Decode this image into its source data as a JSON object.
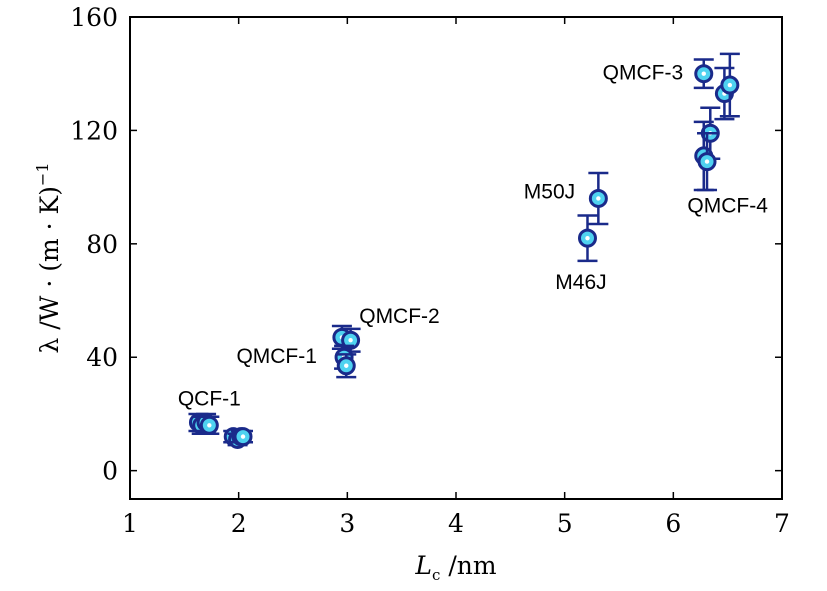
{
  "chart_data": {
    "type": "scatter",
    "title": "",
    "xlabel": {
      "main": "L",
      "sub": "c",
      "unit": " /nm"
    },
    "ylabel": {
      "prefix": "λ /W · (m · K)",
      "sup": "−1"
    },
    "xlim": [
      1,
      7
    ],
    "ylim": [
      -10,
      160
    ],
    "xticks": [
      1,
      2,
      3,
      4,
      5,
      6,
      7
    ],
    "yticks": [
      0,
      40,
      80,
      120,
      160
    ],
    "grid": false,
    "colors": {
      "marker_edge": "#1a2a8a",
      "marker_fill": "#4fd2f0",
      "marker_center": "#ffffff",
      "error_bar": "#1a2a8a"
    },
    "points": [
      {
        "x": 1.63,
        "y": 17,
        "err": 3
      },
      {
        "x": 1.66,
        "y": 16,
        "err": 3
      },
      {
        "x": 1.7,
        "y": 17,
        "err": 3
      },
      {
        "x": 1.73,
        "y": 16,
        "err": 3
      },
      {
        "x": 1.95,
        "y": 12,
        "err": 2
      },
      {
        "x": 1.99,
        "y": 11,
        "err": 2
      },
      {
        "x": 2.02,
        "y": 12,
        "err": 2
      },
      {
        "x": 2.04,
        "y": 12,
        "err": 2
      },
      {
        "x": 2.95,
        "y": 47,
        "err": 4
      },
      {
        "x": 3.03,
        "y": 46,
        "err": 4
      },
      {
        "x": 2.97,
        "y": 40,
        "err": 4
      },
      {
        "x": 2.99,
        "y": 37,
        "err": 4
      },
      {
        "x": 5.21,
        "y": 82,
        "err": 8
      },
      {
        "x": 5.31,
        "y": 96,
        "err": 9
      },
      {
        "x": 6.28,
        "y": 140,
        "err": 5
      },
      {
        "x": 6.47,
        "y": 133,
        "err": 9
      },
      {
        "x": 6.52,
        "y": 136,
        "err": 11
      },
      {
        "x": 6.34,
        "y": 119,
        "err": 9
      },
      {
        "x": 6.28,
        "y": 111,
        "err": 12
      },
      {
        "x": 6.31,
        "y": 109,
        "err": 10
      }
    ],
    "annotations": [
      {
        "text": "QCF-1",
        "x": 1.73,
        "y": 23
      },
      {
        "text": "QMCF-1",
        "x": 2.35,
        "y": 38
      },
      {
        "text": "QMCF-2",
        "x": 3.48,
        "y": 52
      },
      {
        "text": "M50J",
        "x": 4.86,
        "y": 96
      },
      {
        "text": "M46J",
        "x": 5.15,
        "y": 64
      },
      {
        "text": "QMCF-3",
        "x": 5.72,
        "y": 138
      },
      {
        "text": "QMCF-4",
        "x": 6.5,
        "y": 91
      }
    ]
  }
}
